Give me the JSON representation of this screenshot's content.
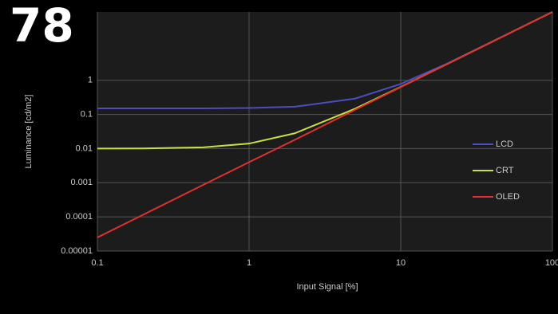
{
  "badge": "78",
  "chart_data": {
    "type": "line",
    "x_label": "Input Signal [%]",
    "y_label": "Luminance [cd/m2]",
    "x": [
      0.1,
      0.2,
      0.5,
      1,
      2,
      5,
      10,
      20,
      50,
      100
    ],
    "series": [
      {
        "name": "LCD",
        "color": "#4a4ec0",
        "values": [
          0.15,
          0.15,
          0.15,
          0.154,
          0.168,
          0.29,
          0.78,
          3.0,
          22,
          100
        ]
      },
      {
        "name": "CRT",
        "color": "#c8e040",
        "values": [
          0.01,
          0.0101,
          0.0109,
          0.014,
          0.028,
          0.147,
          0.64,
          2.9,
          21.8,
          100
        ]
      },
      {
        "name": "OLED",
        "color": "#e03030",
        "values": [
          2.5e-05,
          0.000115,
          0.00087,
          0.004,
          0.018,
          0.137,
          0.63,
          2.9,
          21.8,
          100
        ]
      }
    ],
    "xlim": [
      0.1,
      100
    ],
    "xticks": [
      0.1,
      1,
      10,
      100
    ],
    "ylim": [
      1e-05,
      100
    ],
    "yticks": [
      1e-05,
      0.0001,
      0.001,
      0.01,
      0.1,
      1
    ],
    "log_x": true,
    "log_y": true,
    "grid": true,
    "legend": "right"
  }
}
